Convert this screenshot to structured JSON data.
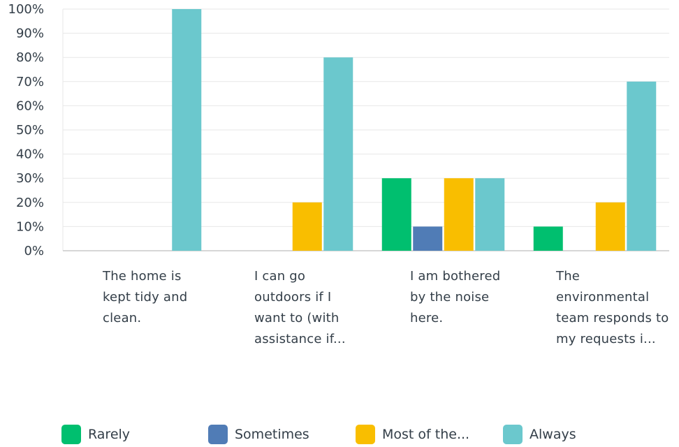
{
  "chart_data": {
    "type": "bar",
    "categories": [
      "The home is kept tidy and clean.",
      "I can go outdoors if I want to (with assistance if...",
      "I am bothered by the noise here.",
      "The environmental team responds to my requests i..."
    ],
    "category_lines": [
      [
        "The home is",
        "kept tidy and",
        "clean."
      ],
      [
        "I can go",
        "outdoors if I",
        "want to (with",
        "assistance if..."
      ],
      [
        "I am bothered",
        "by the noise",
        "here."
      ],
      [
        "The",
        "environmental",
        "team responds to",
        "my requests i..."
      ]
    ],
    "series": [
      {
        "name": "Rarely",
        "color": "#00bf6f",
        "values": [
          0,
          0,
          30,
          10
        ]
      },
      {
        "name": "Sometimes",
        "color": "#507cb6",
        "values": [
          0,
          0,
          10,
          0
        ]
      },
      {
        "name": "Most of the...",
        "color": "#f9be00",
        "values": [
          0,
          20,
          30,
          20
        ]
      },
      {
        "name": "Always",
        "color": "#6bc8cd",
        "values": [
          100,
          80,
          30,
          70
        ]
      }
    ],
    "yticks": [
      "0%",
      "10%",
      "20%",
      "30%",
      "40%",
      "50%",
      "60%",
      "70%",
      "80%",
      "90%",
      "100%"
    ],
    "ylim": [
      0,
      100
    ],
    "grid": true,
    "legend_position": "bottom"
  }
}
